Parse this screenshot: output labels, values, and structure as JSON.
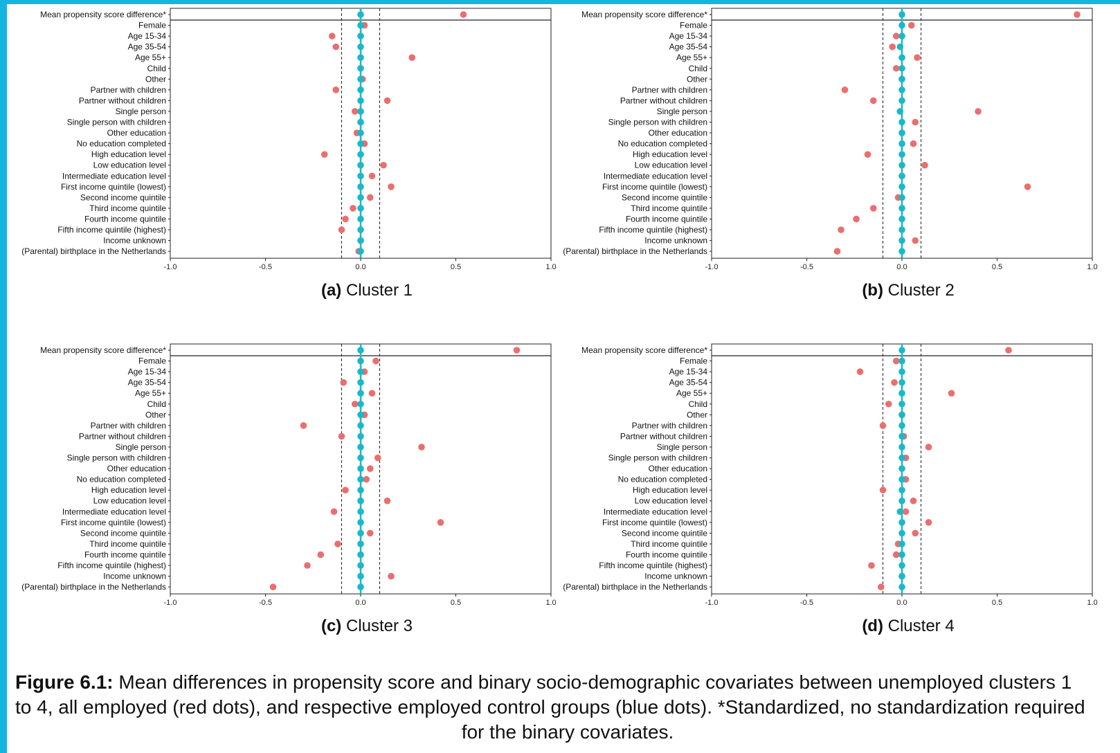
{
  "figure": {
    "label": "Figure 6.1:",
    "caption_line1": " Mean differences in propensity score and binary socio-demographic covariates between unemployed clusters 1",
    "caption_line2": "to 4, all employed (red dots), and respective employed control groups (blue dots). *Standardized, no standardization required",
    "caption_line3": "for the binary covariates."
  },
  "colors": {
    "red": "#eb6e6e",
    "blue": "#19b9c9",
    "accent_bar": "#14b5de"
  },
  "chart_data": [
    {
      "type": "scatter",
      "panel_tag": "(a)",
      "panel_name": "Cluster 1",
      "xlim": [
        -1.0,
        1.0
      ],
      "xticks": [
        "-1.0",
        "-0.5",
        "0.0",
        "0.5",
        "1.0"
      ],
      "xtick_values": [
        -1.0,
        -0.5,
        0.0,
        0.5,
        1.0
      ],
      "reference_lines": [
        -0.1,
        0.1
      ],
      "categories": [
        "Mean propensity score difference*",
        "Female",
        "Age 15-34",
        "Age 35-54",
        "Age 55+",
        "Child",
        "Other",
        "Partner with children",
        "Partner without children",
        "Single person",
        "Single person with children",
        "Other education",
        "No education completed",
        "High education level",
        "Low education level",
        "Intermediate education level",
        "First income quintile (lowest)",
        "Second income quintile",
        "Third income quintile",
        "Fourth income quintile",
        "Fifth income quintile (highest)",
        "Income unknown",
        "(Parental) birthplace in the Netherlands"
      ],
      "series": [
        {
          "name": "red",
          "values": [
            0.54,
            0.02,
            -0.15,
            -0.13,
            0.27,
            0.0,
            0.01,
            -0.13,
            0.14,
            -0.03,
            0.0,
            -0.02,
            0.02,
            -0.19,
            0.12,
            0.06,
            0.16,
            0.05,
            -0.04,
            -0.08,
            -0.1,
            0.0,
            -0.01
          ]
        },
        {
          "name": "blue",
          "values": [
            0.0,
            0.0,
            0.0,
            0.0,
            0.0,
            0.0,
            0.0,
            0.0,
            0.0,
            0.0,
            0.0,
            0.0,
            0.0,
            0.0,
            0.0,
            0.0,
            0.0,
            0.0,
            0.0,
            0.0,
            0.0,
            0.0,
            0.0
          ]
        }
      ]
    },
    {
      "type": "scatter",
      "panel_tag": "(b)",
      "panel_name": "Cluster 2",
      "xlim": [
        -1.0,
        1.0
      ],
      "xticks": [
        "-1.0",
        "-0.5",
        "0.0",
        "0.5",
        "1.0"
      ],
      "xtick_values": [
        -1.0,
        -0.5,
        0.0,
        0.5,
        1.0
      ],
      "reference_lines": [
        -0.1,
        0.1
      ],
      "categories": [
        "Mean propensity score difference*",
        "Female",
        "Age 15-34",
        "Age 35-54",
        "Age 55+",
        "Child",
        "Other",
        "Partner with children",
        "Partner without children",
        "Single person",
        "Single person with children",
        "Other education",
        "No education completed",
        "High education level",
        "Low education level",
        "Intermediate education level",
        "First income quintile (lowest)",
        "Second income quintile",
        "Third income quintile",
        "Fourth income quintile",
        "Fifth income quintile (highest)",
        "Income unknown",
        "(Parental) birthplace in the Netherlands"
      ],
      "series": [
        {
          "name": "red",
          "values": [
            0.92,
            0.05,
            -0.03,
            -0.05,
            0.08,
            -0.03,
            0.0,
            -0.3,
            -0.15,
            0.4,
            0.07,
            0.0,
            0.06,
            -0.18,
            0.12,
            0.0,
            0.66,
            -0.02,
            -0.15,
            -0.24,
            -0.32,
            0.07,
            -0.34
          ]
        },
        {
          "name": "blue",
          "values": [
            0.0,
            0.0,
            0.0,
            -0.01,
            0.0,
            0.0,
            0.0,
            0.0,
            0.0,
            -0.01,
            0.0,
            0.0,
            0.0,
            0.0,
            0.0,
            0.0,
            0.0,
            0.0,
            0.0,
            0.0,
            0.0,
            0.0,
            0.0
          ]
        }
      ]
    },
    {
      "type": "scatter",
      "panel_tag": "(c)",
      "panel_name": "Cluster 3",
      "xlim": [
        -1.0,
        1.0
      ],
      "xticks": [
        "-1.0",
        "-0.5",
        "0.0",
        "0.5",
        "1.0"
      ],
      "xtick_values": [
        -1.0,
        -0.5,
        0.0,
        0.5,
        1.0
      ],
      "reference_lines": [
        -0.1,
        0.1
      ],
      "categories": [
        "Mean propensity score difference*",
        "Female",
        "Age 15-34",
        "Age 35-54",
        "Age 55+",
        "Child",
        "Other",
        "Partner with children",
        "Partner without children",
        "Single person",
        "Single person with children",
        "Other education",
        "No education completed",
        "High education level",
        "Low education level",
        "Intermediate education level",
        "First income quintile (lowest)",
        "Second income quintile",
        "Third income quintile",
        "Fourth income quintile",
        "Fifth income quintile (highest)",
        "Income unknown",
        "(Parental) birthplace in the Netherlands"
      ],
      "series": [
        {
          "name": "red",
          "values": [
            0.82,
            0.08,
            0.02,
            -0.09,
            0.06,
            -0.03,
            0.02,
            -0.3,
            -0.1,
            0.32,
            0.09,
            0.05,
            0.03,
            -0.08,
            0.14,
            -0.14,
            0.42,
            0.05,
            -0.12,
            -0.21,
            -0.28,
            0.16,
            -0.46
          ]
        },
        {
          "name": "blue",
          "values": [
            0.0,
            0.0,
            0.0,
            0.0,
            0.0,
            0.0,
            0.0,
            0.0,
            0.0,
            0.0,
            0.0,
            0.0,
            0.0,
            0.0,
            0.0,
            0.0,
            0.0,
            0.0,
            0.0,
            0.0,
            0.0,
            0.0,
            0.0
          ]
        }
      ]
    },
    {
      "type": "scatter",
      "panel_tag": "(d)",
      "panel_name": "Cluster 4",
      "xlim": [
        -1.0,
        1.0
      ],
      "xticks": [
        "-1.0",
        "-0.5",
        "0.0",
        "0.5",
        "1.0"
      ],
      "xtick_values": [
        -1.0,
        -0.5,
        0.0,
        0.5,
        1.0
      ],
      "reference_lines": [
        -0.1,
        0.1
      ],
      "categories": [
        "Mean propensity score difference*",
        "Female",
        "Age 15-34",
        "Age 35-54",
        "Age 55+",
        "Child",
        "Other",
        "Partner with children",
        "Partner without children",
        "Single person",
        "Single person with children",
        "Other education",
        "No education completed",
        "High education level",
        "Low education level",
        "Intermediate education level",
        "First income quintile (lowest)",
        "Second income quintile",
        "Third income quintile",
        "Fourth income quintile",
        "Fifth income quintile (highest)",
        "Income unknown",
        "(Parental) birthplace in the Netherlands"
      ],
      "series": [
        {
          "name": "red",
          "values": [
            0.56,
            -0.03,
            -0.22,
            -0.04,
            0.26,
            -0.07,
            0.0,
            -0.1,
            0.01,
            0.14,
            0.02,
            0.0,
            0.02,
            -0.1,
            0.06,
            0.02,
            0.14,
            0.07,
            -0.02,
            -0.03,
            -0.16,
            0.0,
            -0.11
          ]
        },
        {
          "name": "blue",
          "values": [
            0.0,
            0.0,
            0.0,
            0.0,
            0.0,
            0.0,
            0.0,
            0.0,
            0.0,
            0.0,
            0.0,
            0.0,
            0.0,
            0.0,
            0.0,
            -0.01,
            0.0,
            0.0,
            0.0,
            0.0,
            0.0,
            0.0,
            0.0
          ]
        }
      ]
    }
  ]
}
